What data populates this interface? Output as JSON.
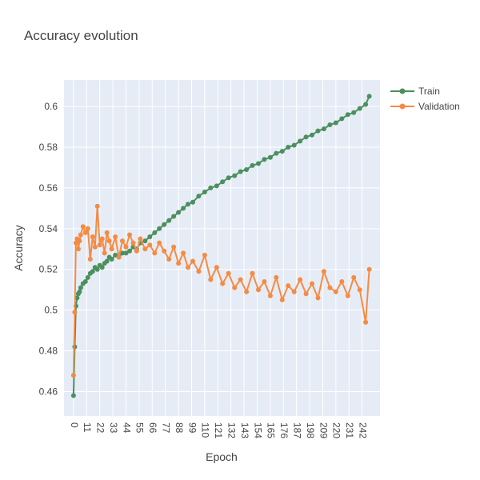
{
  "chart_data": {
    "type": "line",
    "title": "Accuracy evolution",
    "xlabel": "Epoch",
    "ylabel": "Accuracy",
    "xlim": [
      -8,
      257
    ],
    "ylim": [
      0.448,
      0.613
    ],
    "x_ticks": [
      0,
      11,
      22,
      33,
      44,
      55,
      66,
      77,
      88,
      99,
      110,
      121,
      132,
      143,
      154,
      165,
      176,
      187,
      198,
      209,
      220,
      231,
      242
    ],
    "y_ticks": [
      0.46,
      0.48,
      0.5,
      0.52,
      0.54,
      0.56,
      0.58,
      0.6
    ],
    "y_tick_labels": [
      "0.46",
      "0.48",
      "0.5",
      "0.52",
      "0.54",
      "0.56",
      "0.58",
      "0.6"
    ],
    "grid": true,
    "legend_position": "top-right",
    "colors": {
      "train": "#4c8f5e",
      "validation": "#f58b43",
      "plot_bg": "#e5ecf6",
      "grid": "#ffffff"
    },
    "series": [
      {
        "name": "Train",
        "color": "#4c8f5e",
        "x": [
          0,
          1,
          2,
          3,
          4,
          5,
          6,
          8,
          10,
          12,
          14,
          16,
          18,
          20,
          22,
          24,
          26,
          28,
          30,
          32,
          35,
          38,
          41,
          44,
          47,
          50,
          53,
          56,
          60,
          64,
          68,
          72,
          76,
          80,
          84,
          88,
          92,
          96,
          100,
          105,
          110,
          115,
          120,
          125,
          130,
          135,
          140,
          145,
          150,
          155,
          160,
          165,
          170,
          175,
          180,
          185,
          190,
          195,
          200,
          205,
          210,
          215,
          220,
          225,
          230,
          235,
          240,
          245,
          248
        ],
        "y": [
          0.458,
          0.482,
          0.502,
          0.506,
          0.508,
          0.509,
          0.511,
          0.513,
          0.514,
          0.516,
          0.518,
          0.519,
          0.521,
          0.52,
          0.522,
          0.521,
          0.523,
          0.524,
          0.526,
          0.525,
          0.527,
          0.526,
          0.528,
          0.528,
          0.529,
          0.531,
          0.53,
          0.533,
          0.534,
          0.536,
          0.538,
          0.54,
          0.542,
          0.544,
          0.546,
          0.548,
          0.55,
          0.552,
          0.553,
          0.556,
          0.558,
          0.56,
          0.561,
          0.563,
          0.565,
          0.566,
          0.568,
          0.569,
          0.571,
          0.572,
          0.574,
          0.575,
          0.577,
          0.578,
          0.58,
          0.581,
          0.583,
          0.585,
          0.586,
          0.588,
          0.589,
          0.591,
          0.592,
          0.594,
          0.596,
          0.597,
          0.599,
          0.601,
          0.605
        ]
      },
      {
        "name": "Validation",
        "color": "#f58b43",
        "x": [
          0,
          1,
          2,
          3,
          4,
          5,
          6,
          8,
          10,
          12,
          14,
          16,
          18,
          20,
          22,
          24,
          26,
          28,
          30,
          32,
          35,
          38,
          41,
          44,
          47,
          50,
          53,
          56,
          60,
          64,
          68,
          72,
          76,
          80,
          84,
          88,
          92,
          96,
          100,
          105,
          110,
          115,
          120,
          125,
          130,
          135,
          140,
          145,
          150,
          155,
          160,
          165,
          170,
          175,
          180,
          185,
          190,
          195,
          200,
          205,
          210,
          215,
          220,
          225,
          230,
          235,
          240,
          245,
          248
        ],
        "y": [
          0.468,
          0.499,
          0.533,
          0.535,
          0.53,
          0.534,
          0.537,
          0.541,
          0.538,
          0.54,
          0.525,
          0.536,
          0.531,
          0.551,
          0.532,
          0.535,
          0.528,
          0.538,
          0.534,
          0.53,
          0.536,
          0.526,
          0.534,
          0.531,
          0.537,
          0.533,
          0.529,
          0.535,
          0.53,
          0.532,
          0.528,
          0.533,
          0.529,
          0.525,
          0.531,
          0.523,
          0.528,
          0.521,
          0.524,
          0.519,
          0.527,
          0.515,
          0.521,
          0.513,
          0.518,
          0.511,
          0.515,
          0.509,
          0.518,
          0.51,
          0.514,
          0.507,
          0.516,
          0.505,
          0.512,
          0.509,
          0.515,
          0.508,
          0.513,
          0.506,
          0.519,
          0.511,
          0.509,
          0.514,
          0.507,
          0.516,
          0.51,
          0.494,
          0.52
        ]
      }
    ]
  }
}
